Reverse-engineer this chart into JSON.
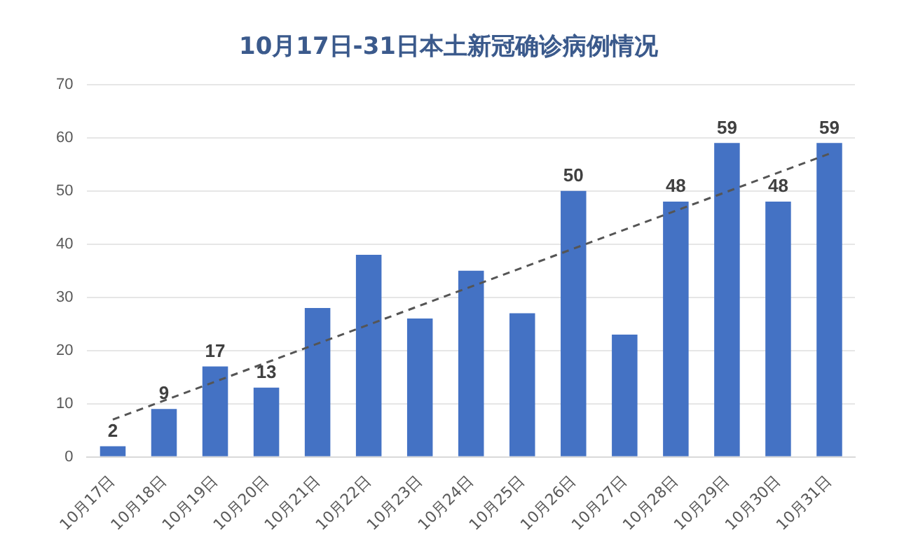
{
  "chart_data": {
    "type": "bar",
    "title": "10月17日-31日本土新冠确诊病例情况",
    "categories": [
      "10月17日",
      "10月18日",
      "10月19日",
      "10月20日",
      "10月21日",
      "10月22日",
      "10月23日",
      "10月24日",
      "10月25日",
      "10月26日",
      "10月27日",
      "10月28日",
      "10月29日",
      "10月30日",
      "10月31日"
    ],
    "series": [
      {
        "color": "#4472c4",
        "values": [
          2,
          9,
          17,
          13,
          28,
          38,
          26,
          35,
          27,
          50,
          23,
          48,
          59,
          48,
          59
        ],
        "value_labels": [
          "2",
          "9",
          "17",
          "13",
          null,
          null,
          null,
          null,
          null,
          "50",
          null,
          "48",
          "59",
          "48",
          "59"
        ]
      },
      {
        "type": "line",
        "color": "#555555",
        "line_style": "dashed",
        "marker": "none",
        "x": [
          "10月17日",
          "10月31日"
        ],
        "values": [
          7,
          57
        ]
      }
    ],
    "ylim": [
      0,
      70
    ],
    "yticks": [
      0,
      10,
      20,
      30,
      40,
      50,
      60,
      70
    ],
    "grid": "y",
    "legend": false
  }
}
